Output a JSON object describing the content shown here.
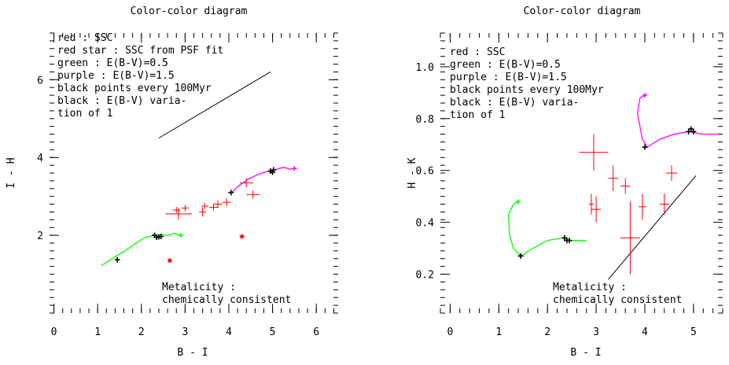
{
  "chart_data": [
    {
      "type": "scatter",
      "title": "Color-color diagram",
      "xlabel": "B - I",
      "ylabel": "I - H",
      "xlim": [
        -0.1,
        6.5
      ],
      "ylim": [
        0,
        7.2
      ],
      "xticks": [
        0,
        1,
        2,
        3,
        4,
        5,
        6
      ],
      "yticks": [
        2,
        4,
        6
      ],
      "legend": [
        "red : SSC",
        "red star : SSC from PSF fit",
        "green : E(B-V)=0.5",
        "purple : E(B-V)=1.5",
        "black points every 100Myr",
        "black : E(B-V) varia-",
        "   tion of 1"
      ],
      "annotation": [
        "Metalicity :",
        "chemically consistent"
      ],
      "colors": {
        "red": "#ff0000",
        "green": "#00ff00",
        "purple": "#ff00ff",
        "black": "#000000"
      },
      "green_track": [
        [
          1.08,
          1.22
        ],
        [
          1.2,
          1.3
        ],
        [
          1.4,
          1.45
        ],
        [
          1.65,
          1.62
        ],
        [
          1.9,
          1.82
        ],
        [
          2.1,
          1.95
        ],
        [
          2.35,
          2.0
        ],
        [
          2.5,
          2.02
        ],
        [
          2.6,
          1.99
        ],
        [
          2.75,
          2.05
        ],
        [
          2.9,
          2.0
        ]
      ],
      "purple_track": [
        [
          4.05,
          3.08
        ],
        [
          4.2,
          3.25
        ],
        [
          4.45,
          3.45
        ],
        [
          4.7,
          3.58
        ],
        [
          4.95,
          3.66
        ],
        [
          5.1,
          3.7
        ],
        [
          5.25,
          3.75
        ],
        [
          5.4,
          3.7
        ],
        [
          5.5,
          3.72
        ]
      ],
      "age_points": [
        [
          1.45,
          1.37
        ],
        [
          2.3,
          2.0
        ],
        [
          2.35,
          1.95
        ],
        [
          2.4,
          1.96
        ],
        [
          2.45,
          1.97
        ],
        [
          4.05,
          3.1
        ],
        [
          4.95,
          3.65
        ],
        [
          5.0,
          3.62
        ],
        [
          5.02,
          3.68
        ]
      ],
      "ssc": [
        {
          "x": 2.85,
          "y": 2.55,
          "dx": 0.3,
          "dy": 0.15
        },
        {
          "x": 2.8,
          "y": 2.65,
          "dx": 0.08,
          "dy": 0.08
        },
        {
          "x": 3.0,
          "y": 2.7,
          "dx": 0.08,
          "dy": 0.08
        },
        {
          "x": 3.4,
          "y": 2.6,
          "dx": 0.08,
          "dy": 0.12
        },
        {
          "x": 3.45,
          "y": 2.75,
          "dx": 0.08,
          "dy": 0.08
        },
        {
          "x": 3.65,
          "y": 2.72,
          "dx": 0.1,
          "dy": 0.08
        },
        {
          "x": 3.75,
          "y": 2.8,
          "dx": 0.1,
          "dy": 0.1
        },
        {
          "x": 3.95,
          "y": 2.85,
          "dx": 0.1,
          "dy": 0.1
        },
        {
          "x": 4.4,
          "y": 3.35,
          "dx": 0.15,
          "dy": 0.12
        },
        {
          "x": 4.55,
          "y": 3.05,
          "dx": 0.15,
          "dy": 0.1
        }
      ],
      "ssc_psf": [
        [
          2.65,
          1.35
        ],
        [
          4.3,
          1.97
        ]
      ],
      "reddening_vector": [
        [
          2.4,
          4.5
        ],
        [
          4.95,
          6.2
        ]
      ]
    },
    {
      "type": "scatter",
      "title": "Color-color diagram",
      "xlabel": "B - I",
      "ylabel": "H - K",
      "xlim": [
        -0.2,
        5.6
      ],
      "ylim": [
        0.05,
        1.13
      ],
      "xticks": [
        0,
        1,
        2,
        3,
        4,
        5
      ],
      "yticks": [
        0.2,
        0.4,
        0.6,
        0.8,
        1.0
      ],
      "ytick_labels": [
        "0.2",
        "0.4",
        "0.6",
        "0.8",
        "1.0"
      ],
      "legend": [
        "red : SSC",
        "green : E(B-V)=0.5",
        "purple : E(B-V)=1.5",
        "black points every 100Myr",
        "black : E(B-V) varia-",
        "   tion of 1"
      ],
      "annotation": [
        "Metalicity :",
        "chemically consistent"
      ],
      "colors": {
        "red": "#ff0000",
        "green": "#00ff00",
        "purple": "#ff00ff",
        "black": "#000000"
      },
      "green_track": [
        [
          1.4,
          0.48
        ],
        [
          1.3,
          0.47
        ],
        [
          1.2,
          0.43
        ],
        [
          1.22,
          0.35
        ],
        [
          1.3,
          0.3
        ],
        [
          1.45,
          0.27
        ],
        [
          1.7,
          0.3
        ],
        [
          2.0,
          0.33
        ],
        [
          2.3,
          0.34
        ],
        [
          2.5,
          0.33
        ],
        [
          2.8,
          0.33
        ]
      ],
      "purple_track": [
        [
          4.0,
          0.89
        ],
        [
          3.9,
          0.88
        ],
        [
          3.85,
          0.82
        ],
        [
          3.95,
          0.72
        ],
        [
          4.05,
          0.69
        ],
        [
          4.3,
          0.72
        ],
        [
          4.6,
          0.74
        ],
        [
          4.9,
          0.75
        ],
        [
          5.2,
          0.74
        ],
        [
          5.5,
          0.74
        ]
      ],
      "age_points": [
        [
          1.45,
          0.27
        ],
        [
          2.35,
          0.34
        ],
        [
          2.4,
          0.33
        ],
        [
          2.45,
          0.33
        ],
        [
          4.0,
          0.69
        ],
        [
          4.9,
          0.75
        ],
        [
          4.95,
          0.76
        ],
        [
          5.0,
          0.75
        ]
      ],
      "ssc": [
        {
          "x": 2.95,
          "y": 0.67,
          "dx": 0.3,
          "dy": 0.07
        },
        {
          "x": 3.0,
          "y": 0.45,
          "dx": 0.1,
          "dy": 0.05
        },
        {
          "x": 2.9,
          "y": 0.47,
          "dx": 0.05,
          "dy": 0.04
        },
        {
          "x": 3.35,
          "y": 0.57,
          "dx": 0.1,
          "dy": 0.05
        },
        {
          "x": 3.6,
          "y": 0.54,
          "dx": 0.1,
          "dy": 0.03
        },
        {
          "x": 3.7,
          "y": 0.34,
          "dx": 0.2,
          "dy": 0.14
        },
        {
          "x": 3.95,
          "y": 0.46,
          "dx": 0.08,
          "dy": 0.05
        },
        {
          "x": 4.4,
          "y": 0.47,
          "dx": 0.1,
          "dy": 0.04
        },
        {
          "x": 4.55,
          "y": 0.59,
          "dx": 0.12,
          "dy": 0.03
        }
      ],
      "reddening_vector": [
        [
          3.25,
          0.18
        ],
        [
          5.05,
          0.58
        ]
      ]
    }
  ]
}
